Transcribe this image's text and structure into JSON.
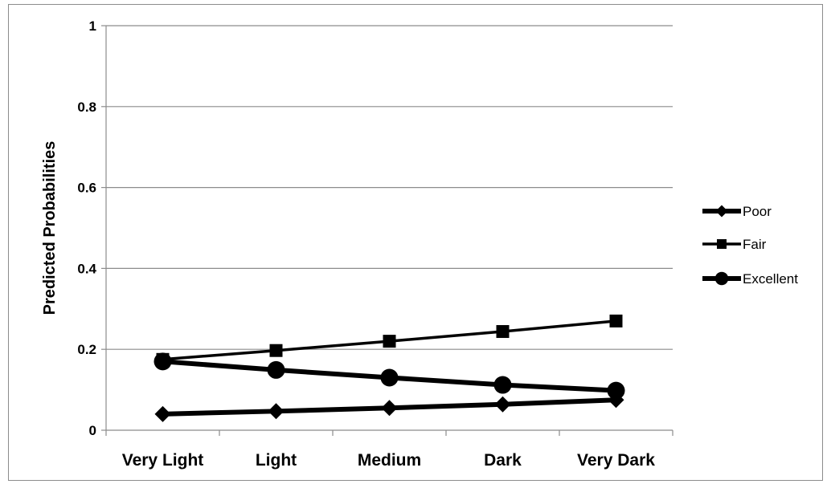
{
  "chart_data": {
    "type": "line",
    "title": "",
    "xlabel": "",
    "ylabel": "Predicted Probabilities",
    "ylim": [
      0,
      1
    ],
    "yticks": [
      "0",
      "0.2",
      "0.4",
      "0.6",
      "0.8",
      "1"
    ],
    "ytick_values": [
      0,
      0.2,
      0.4,
      0.6,
      0.8,
      1
    ],
    "grid": true,
    "legend_position": "right",
    "categories": [
      "Very Light",
      "Light",
      "Medium",
      "Dark",
      "Very Dark"
    ],
    "series": [
      {
        "name": "Poor",
        "marker": "diamond",
        "values": [
          0.04,
          0.047,
          0.055,
          0.064,
          0.075
        ],
        "color": "#000000"
      },
      {
        "name": "Fair",
        "marker": "square",
        "values": [
          0.175,
          0.197,
          0.22,
          0.244,
          0.27
        ],
        "color": "#000000"
      },
      {
        "name": "Excellent",
        "marker": "circle",
        "values": [
          0.17,
          0.149,
          0.13,
          0.112,
          0.098
        ],
        "color": "#000000"
      }
    ]
  }
}
